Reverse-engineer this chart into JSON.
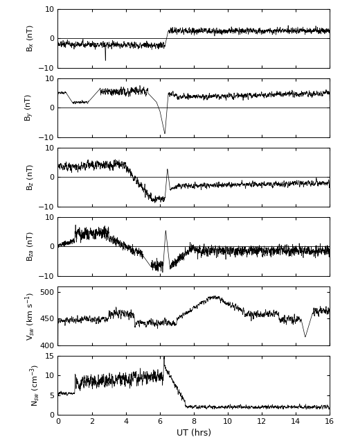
{
  "title": "",
  "xlabel": "UT (hrs)",
  "xlim": [
    0,
    16
  ],
  "xticks": [
    0,
    2,
    4,
    6,
    8,
    10,
    12,
    14,
    16
  ],
  "panels": [
    {
      "ylabel": "B$_x$ (nT)",
      "ylim": [
        -10,
        10
      ],
      "yticks": [
        -10,
        0,
        10
      ],
      "zero_line": true
    },
    {
      "ylabel": "B$_y$ (nT)",
      "ylim": [
        -10,
        10
      ],
      "yticks": [
        -10,
        0,
        10
      ],
      "zero_line": true
    },
    {
      "ylabel": "B$_z$ (nT)",
      "ylim": [
        -10,
        10
      ],
      "yticks": [
        -10,
        0,
        10
      ],
      "zero_line": true
    },
    {
      "ylabel": "B$_{za}$ (nT)",
      "ylim": [
        -10,
        10
      ],
      "yticks": [
        -10,
        0,
        10
      ],
      "zero_line": true
    },
    {
      "ylabel": "V$_{sw}$ (km s$^{-1}$)",
      "ylim": [
        400,
        510
      ],
      "yticks": [
        400,
        450,
        500
      ],
      "zero_line": false
    },
    {
      "ylabel": "N$_{sw}$ (cm$^{-3}$)",
      "ylim": [
        0,
        15
      ],
      "yticks": [
        0,
        5,
        10,
        15
      ],
      "zero_line": false
    }
  ],
  "line_color": "black",
  "line_width": 0.5,
  "bg_color": "white",
  "font_size": 8
}
